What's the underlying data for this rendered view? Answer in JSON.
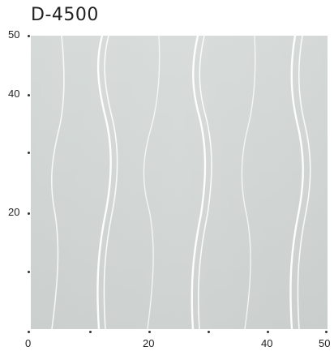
{
  "title": "D-4500",
  "colors": {
    "fabric": "#cfd4d2",
    "stripe": "#ffffff",
    "text": "#222222"
  },
  "y_axis": {
    "labels": [
      "50",
      "40",
      "20"
    ],
    "minor_ticks": 2
  },
  "x_axis": {
    "labels": [
      "0",
      "20",
      "40",
      "50"
    ],
    "minor_ticks": 2
  }
}
